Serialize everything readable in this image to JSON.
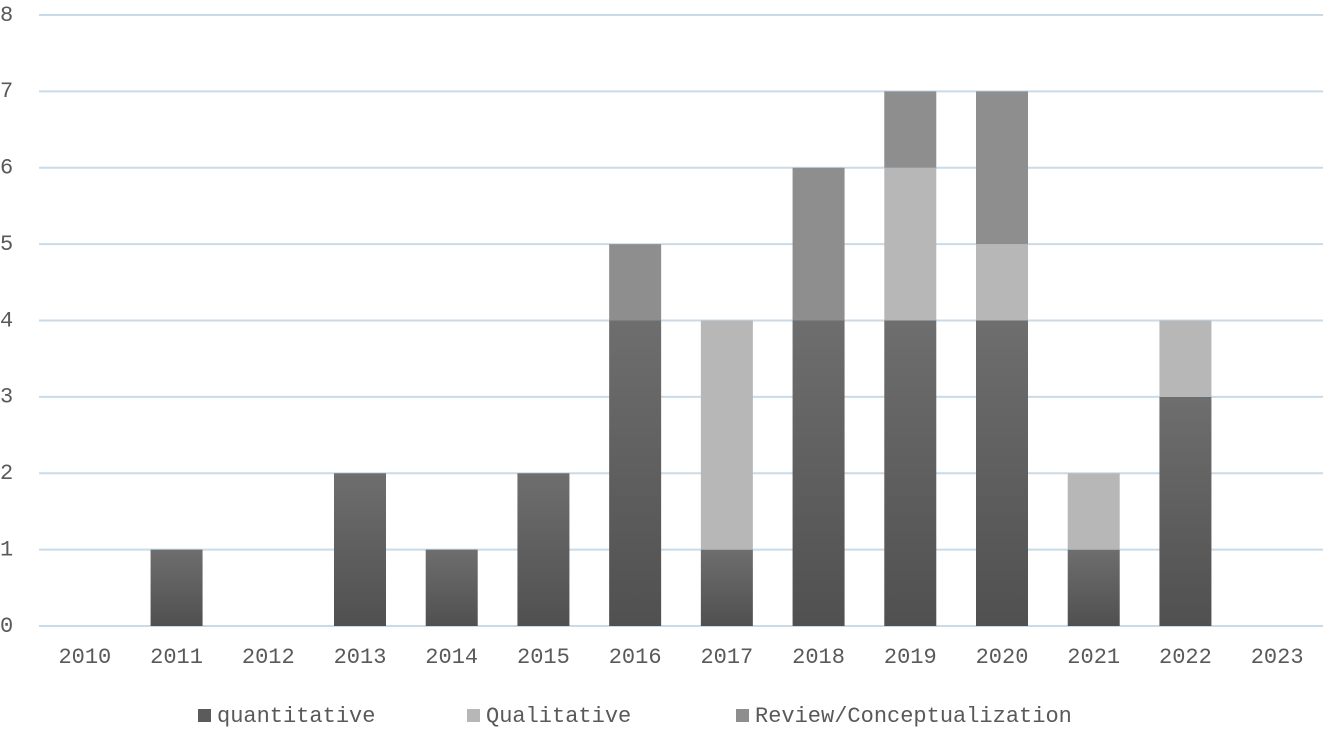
{
  "chart_data": {
    "type": "stacked_bar",
    "categories": [
      "2010",
      "2011",
      "2012",
      "2013",
      "2014",
      "2015",
      "2016",
      "2017",
      "2018",
      "2019",
      "2020",
      "2021",
      "2022",
      "2023"
    ],
    "series": [
      {
        "name": "quantitative",
        "color": "#5b5b5b",
        "values": [
          0,
          1,
          0,
          2,
          1,
          2,
          4,
          1,
          4,
          4,
          4,
          1,
          3,
          0
        ]
      },
      {
        "name": "Qualitative",
        "color": "#b7b7b7",
        "values": [
          0,
          0,
          0,
          0,
          0,
          0,
          0,
          3,
          0,
          2,
          1,
          1,
          1,
          0
        ]
      },
      {
        "name": "Review/Conceptualization",
        "color": "#8e8e8e",
        "values": [
          0,
          0,
          0,
          0,
          0,
          0,
          1,
          0,
          2,
          1,
          2,
          0,
          0,
          0
        ]
      }
    ],
    "ylim": [
      0,
      8
    ],
    "yticks": [
      0,
      1,
      2,
      3,
      4,
      5,
      6,
      7,
      8
    ],
    "grid": true,
    "legend": "bottom"
  }
}
